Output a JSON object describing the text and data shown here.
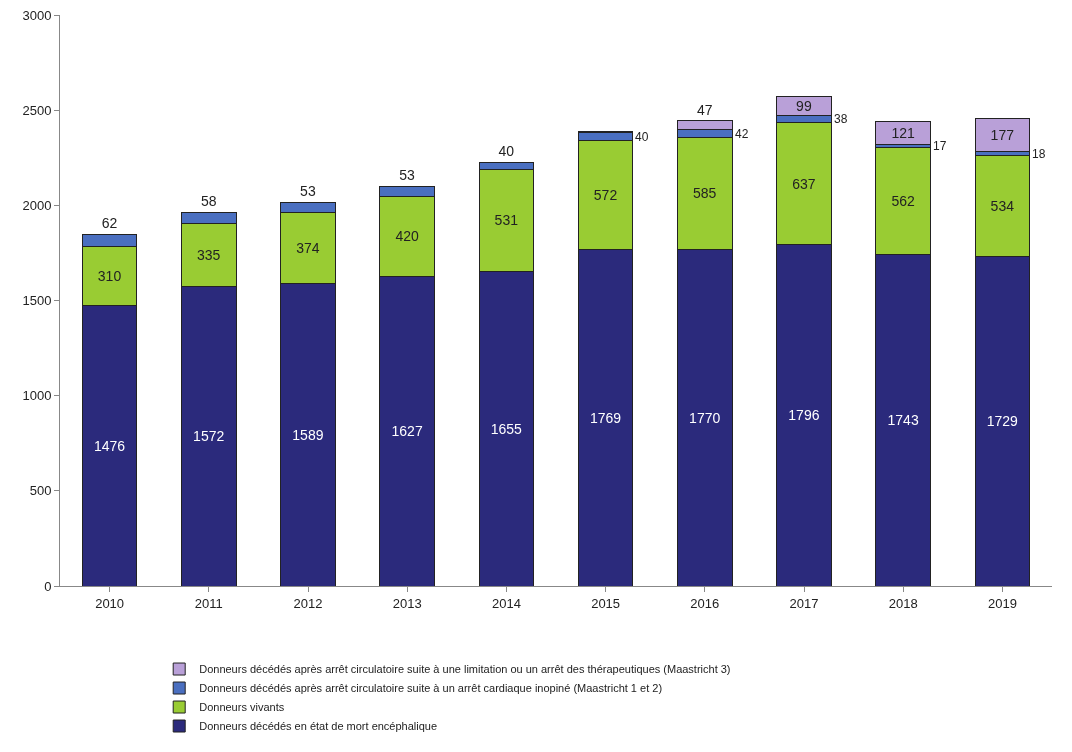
{
  "chart_data": {
    "type": "bar",
    "stacked": true,
    "categories": [
      "2010",
      "2011",
      "2012",
      "2013",
      "2014",
      "2015",
      "2016",
      "2017",
      "2018",
      "2019"
    ],
    "series": [
      {
        "name": "Donneurs décédés en état de mort encéphalique",
        "color": "#2b2a7c",
        "values": [
          1476,
          1572,
          1589,
          1627,
          1655,
          1769,
          1770,
          1796,
          1743,
          1729
        ],
        "value_labels": [
          "1476",
          "1572",
          "1589",
          "1627",
          "1655",
          "1769",
          "1770",
          "1796",
          "1743",
          "1729"
        ]
      },
      {
        "name": "Donneurs vivants",
        "color": "#99cc33",
        "values": [
          310,
          335,
          374,
          420,
          531,
          572,
          585,
          637,
          562,
          534
        ],
        "value_labels": [
          "310",
          "335",
          "374",
          "420",
          "531",
          "572",
          "585",
          "637",
          "562",
          "534"
        ]
      },
      {
        "name": "Donneurs décédés après arrêt circulatoire suite à un arrêt cardiaque inopiné (Maastricht 1 et 2)",
        "color": "#4a6fc0",
        "values": [
          62,
          58,
          53,
          53,
          40,
          40,
          42,
          38,
          17,
          18
        ],
        "value_labels": [
          "62",
          "58",
          "53",
          "53",
          "40",
          "40",
          "42",
          "38",
          "17",
          "18"
        ]
      },
      {
        "name": "Donneurs décédés après arrêt circulatoire suite à une limitation ou un arrêt des thérapeutiques (Maastricht 3)",
        "color": "#b9a0d8",
        "values": [
          null,
          null,
          null,
          null,
          null,
          7,
          47,
          99,
          121,
          177
        ],
        "value_labels": [
          null,
          null,
          null,
          null,
          null,
          null,
          "47",
          "99",
          "121",
          "177"
        ]
      }
    ],
    "ylim": [
      0,
      3000
    ],
    "yticks": [
      0,
      500,
      1000,
      1500,
      2000,
      2500,
      3000
    ],
    "grid": false,
    "legend": "bottom"
  }
}
